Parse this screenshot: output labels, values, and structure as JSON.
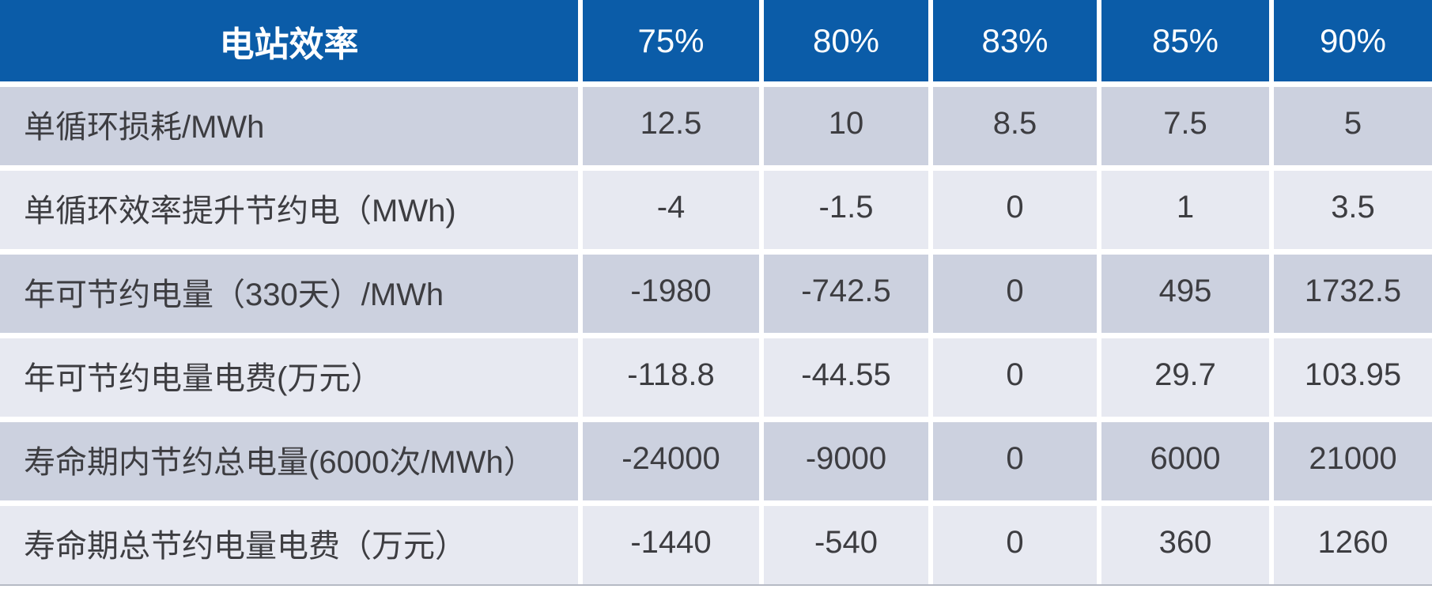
{
  "chart_data": {
    "type": "table",
    "header_title": "电站效率",
    "columns": [
      "75%",
      "80%",
      "83%",
      "85%",
      "90%"
    ],
    "rows": [
      {
        "label": "单循环损耗/MWh",
        "values": [
          "12.5",
          "10",
          "8.5",
          "7.5",
          "5"
        ]
      },
      {
        "label": "单循环效率提升节约电（MWh)",
        "values": [
          "-4",
          "-1.5",
          "0",
          "1",
          "3.5"
        ]
      },
      {
        "label": "年可节约电量（330天）/MWh",
        "values": [
          "-1980",
          "-742.5",
          "0",
          "495",
          "1732.5"
        ]
      },
      {
        "label": "年可节约电量电费(万元）",
        "values": [
          "-118.8",
          "-44.55",
          "0",
          "29.7",
          "103.95"
        ]
      },
      {
        "label": "寿命期内节约总电量(6000次/MWh）",
        "values": [
          "-24000",
          "-9000",
          "0",
          "6000",
          "21000"
        ]
      },
      {
        "label": "寿命期总节约电量电费（万元）",
        "values": [
          "-1440",
          "-540",
          "0",
          "360",
          "1260"
        ]
      }
    ],
    "layout": {
      "label_align": "left",
      "value_align": "center",
      "header_position": "top"
    }
  },
  "colors": {
    "header_bg": "#0B5CA8",
    "header_text": "#FFFFFF",
    "row_dark": "#CCD1DF",
    "row_light": "#E7E9F1",
    "body_text": "#3D3D41",
    "bottom_border": "#B6BAC5"
  }
}
